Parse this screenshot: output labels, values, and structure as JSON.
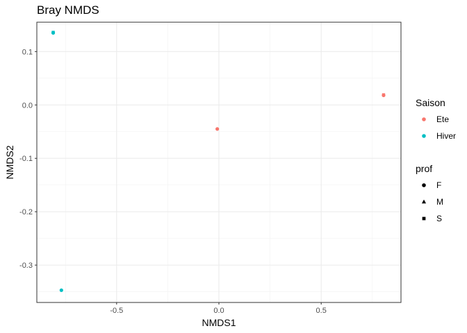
{
  "chart_data": {
    "type": "scatter",
    "title": "Bray NMDS",
    "xlabel": "NMDS1",
    "ylabel": "NMDS2",
    "xlim": [
      -0.89,
      0.89
    ],
    "ylim": [
      -0.37,
      0.155
    ],
    "x_ticks": [
      -0.5,
      0.0,
      0.5
    ],
    "x_tick_labels": [
      "-0.5",
      "0.0",
      "0.5"
    ],
    "y_ticks": [
      0.1,
      0.0,
      -0.1,
      -0.2,
      -0.3
    ],
    "y_tick_labels": [
      "0.1",
      "0.0",
      "-0.1",
      "-0.2",
      "-0.3"
    ],
    "grid": true,
    "legend_position": "right",
    "legends": [
      {
        "title": "Saison",
        "entries": [
          {
            "label": "Ete",
            "color": "#f8766d",
            "shape": "circle"
          },
          {
            "label": "Hiver",
            "color": "#00bfc4",
            "shape": "circle"
          }
        ]
      },
      {
        "title": "prof",
        "entries": [
          {
            "label": "F",
            "color": "#000000",
            "shape": "circle"
          },
          {
            "label": "M",
            "color": "#000000",
            "shape": "triangle"
          },
          {
            "label": "S",
            "color": "#000000",
            "shape": "square"
          }
        ]
      }
    ],
    "points": [
      {
        "x": -0.81,
        "y": 0.136,
        "saison": "Hiver",
        "prof": "S"
      },
      {
        "x": -0.81,
        "y": 0.135,
        "saison": "Hiver",
        "prof": "F"
      },
      {
        "x": -0.77,
        "y": -0.347,
        "saison": "Hiver",
        "prof": "F"
      },
      {
        "x": -0.008,
        "y": -0.045,
        "saison": "Ete",
        "prof": "F"
      },
      {
        "x": 0.805,
        "y": 0.019,
        "saison": "Ete",
        "prof": "S"
      },
      {
        "x": 0.805,
        "y": 0.018,
        "saison": "Ete",
        "prof": "F"
      }
    ]
  }
}
